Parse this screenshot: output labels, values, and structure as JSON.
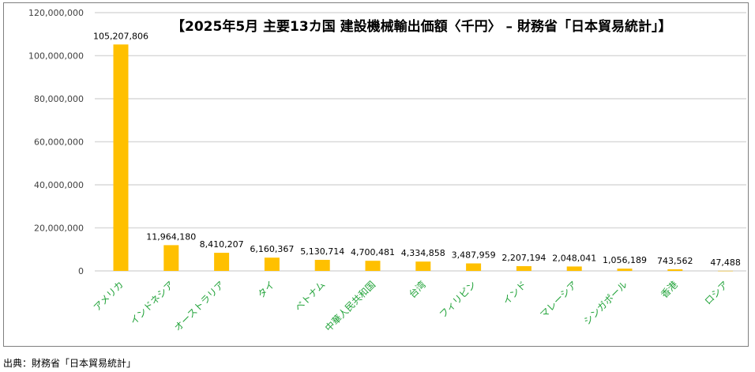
{
  "chart_data": {
    "type": "bar",
    "title": "【2025年5月 主要13カ国 建設機械輸出価額〈千円〉 – 財務省「日本貿易統計」】",
    "xlabel": "",
    "ylabel": "",
    "categories": [
      "アメリカ",
      "インドネシア",
      "オーストラリア",
      "タイ",
      "ベトナム",
      "中華人民共和国",
      "台湾",
      "フィリピン",
      "インド",
      "マレーシア",
      "シンガポール",
      "香港",
      "ロシア"
    ],
    "values": [
      105207806,
      11964180,
      8410207,
      6160367,
      5130714,
      4700481,
      4334858,
      3487959,
      2207194,
      2048041,
      1056189,
      743562,
      47488
    ],
    "data_labels": [
      "105,207,806",
      "11,964,180",
      "8,410,207",
      "6,160,367",
      "5,130,714",
      "4,700,481",
      "4,334,858",
      "3,487,959",
      "2,207,194",
      "2,048,041",
      "1,056,189",
      "743,562",
      "47,488"
    ],
    "yticks": [
      0,
      20000000,
      40000000,
      60000000,
      80000000,
      100000000,
      120000000
    ],
    "ytick_labels": [
      "0",
      "20,000,000",
      "40,000,000",
      "60,000,000",
      "80,000,000",
      "100,000,000",
      "120,000,000"
    ],
    "ylim": [
      0,
      120000000
    ],
    "grid": true,
    "legend": "none",
    "colors": {
      "bar": "#FFC000",
      "category_label": "#22A33A",
      "grid": "#d9d9d9",
      "tick_label": "#404040"
    }
  },
  "source_note": "出典：財務省「日本貿易統計」"
}
